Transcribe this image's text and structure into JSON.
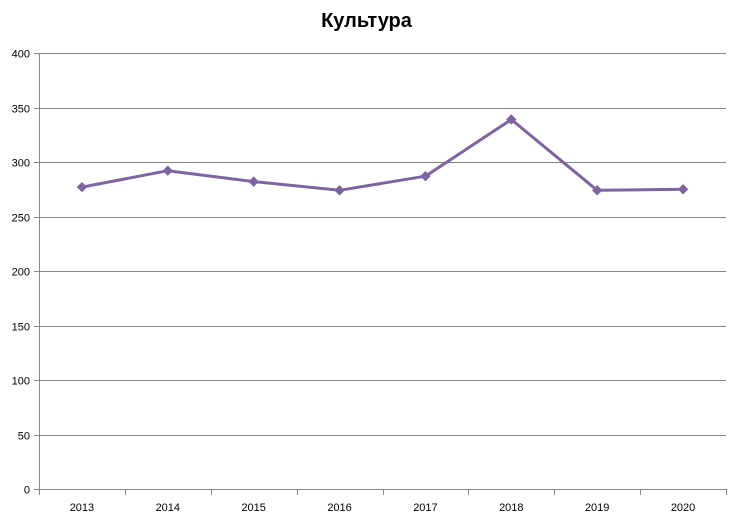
{
  "chart_data": {
    "type": "line",
    "title": "Культура",
    "xlabel": "",
    "ylabel": "",
    "categories": [
      "2013",
      "2014",
      "2015",
      "2016",
      "2017",
      "2018",
      "2019",
      "2020"
    ],
    "series": [
      {
        "values": [
          277,
          292,
          282,
          274,
          287,
          339,
          274,
          275
        ],
        "color": "#8064A2"
      }
    ],
    "ylim": [
      0,
      400
    ],
    "yticks": [
      0,
      50,
      100,
      150,
      200,
      250,
      300,
      350,
      400
    ],
    "grid": true,
    "legend": "none",
    "marker": "diamond"
  }
}
